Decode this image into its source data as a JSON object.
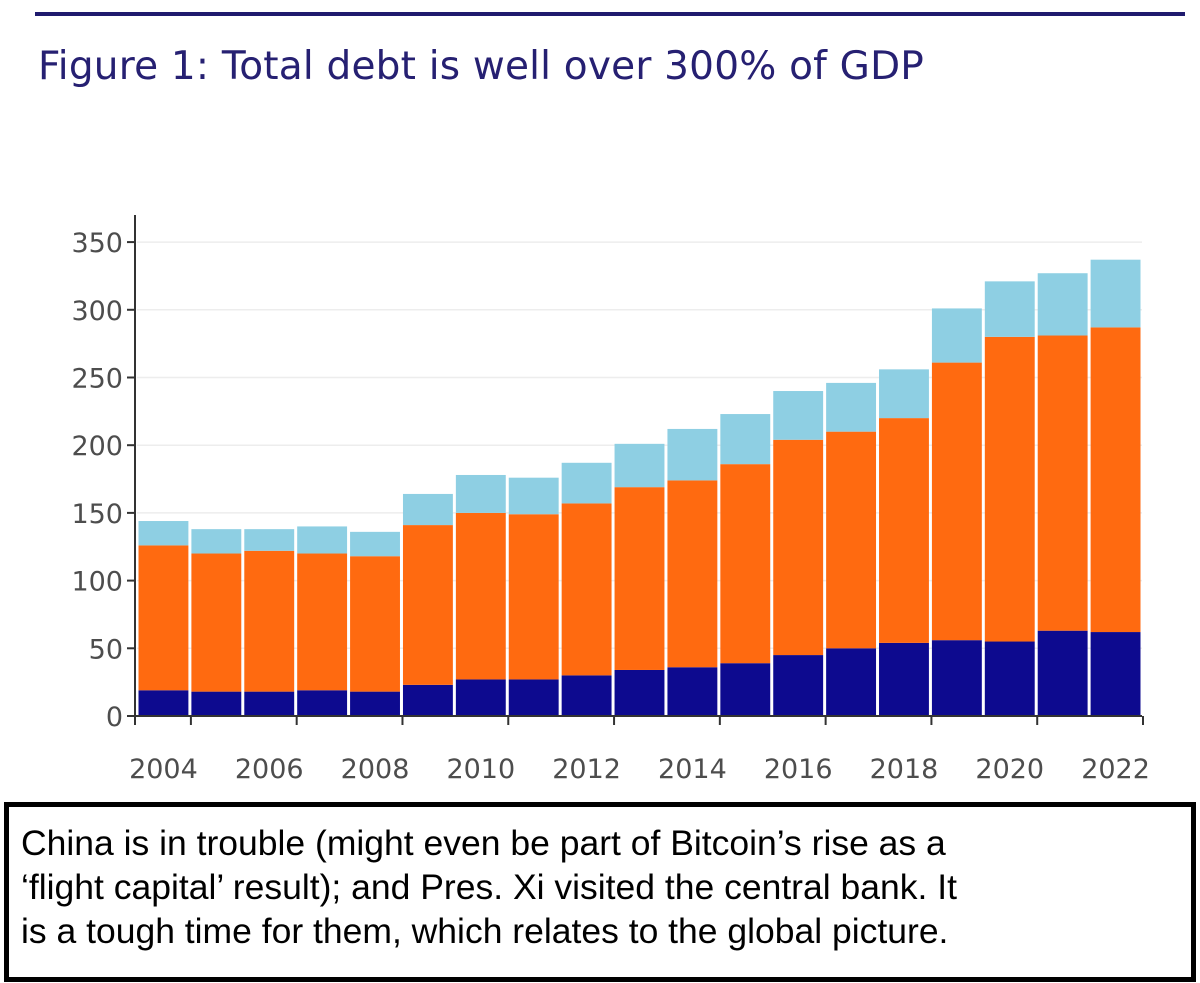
{
  "title": "Figure 1: Total debt is well over 300% of GDP",
  "colors": {
    "rule": "#1f1a6e",
    "title": "#262072",
    "series": [
      "#0d0a8f",
      "#ff6a10",
      "#8ecfe3"
    ]
  },
  "chart_data": {
    "type": "bar",
    "stacked": true,
    "title": "Figure 1: Total debt is well over 300% of GDP",
    "xlabel": "",
    "ylabel": "",
    "ylim": [
      0,
      370
    ],
    "yticks": [
      0,
      50,
      100,
      150,
      200,
      250,
      300,
      350
    ],
    "categories": [
      "2004",
      "2005",
      "2006",
      "2007",
      "2008",
      "2009",
      "2010",
      "2011",
      "2012",
      "2013",
      "2014",
      "2015",
      "2016",
      "2017",
      "2018",
      "2019",
      "2020",
      "2021",
      "2022"
    ],
    "xtick_labels": [
      "2004",
      "2006",
      "2008",
      "2010",
      "2012",
      "2014",
      "2016",
      "2018",
      "2020",
      "2022"
    ],
    "grid": true,
    "legend": "none",
    "series": [
      {
        "name": "Bottom segment (dark blue)",
        "values": [
          19,
          18,
          18,
          19,
          18,
          23,
          27,
          27,
          30,
          34,
          36,
          39,
          45,
          50,
          54,
          56,
          55,
          63,
          62
        ]
      },
      {
        "name": "Middle segment (orange)",
        "values": [
          107,
          102,
          104,
          101,
          100,
          118,
          123,
          122,
          127,
          135,
          138,
          147,
          159,
          160,
          166,
          205,
          225,
          218,
          225
        ]
      },
      {
        "name": "Top segment (light blue)",
        "values": [
          18,
          18,
          16,
          20,
          18,
          23,
          28,
          27,
          30,
          32,
          38,
          37,
          36,
          36,
          36,
          40,
          41,
          46,
          50
        ]
      }
    ]
  },
  "caption": {
    "lines": [
      "China is in trouble (might even be part of Bitcoin’s rise as a",
      "‘flight capital’ result); and Pres. Xi visited the central bank. It",
      "is a tough time for them, which relates to the global picture."
    ]
  }
}
